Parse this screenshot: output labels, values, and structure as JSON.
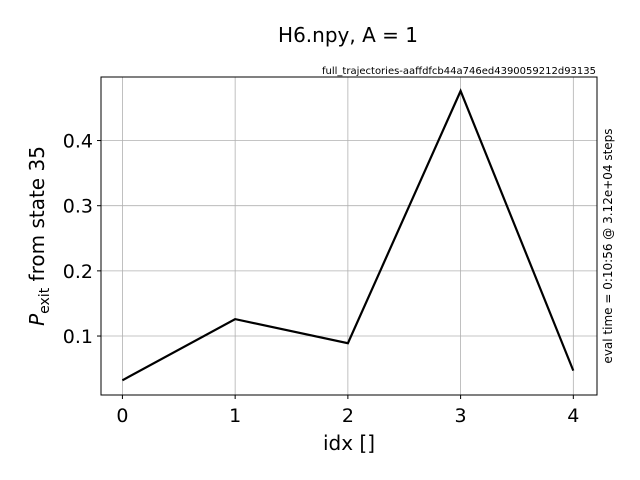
{
  "chart_data": {
    "type": "line",
    "title": "H6.npy, A = 1",
    "subtitle": "full_trajectories-aaffdfcb44a746ed4390059212d93135",
    "xlabel": "idx []",
    "ylabel_main": "P",
    "ylabel_sub": "exit",
    "ylabel_rest": " from state 35",
    "side_note": "eval time = 0:10:56 @ 3.12e+04 steps",
    "x": [
      0,
      1,
      2,
      3,
      4
    ],
    "series": [
      {
        "values": [
          0.032,
          0.126,
          0.089,
          0.476,
          0.047
        ],
        "color": "#000000"
      }
    ],
    "xticks": [
      "0",
      "1",
      "2",
      "3",
      "4"
    ],
    "yticks": [
      "0.1",
      "0.2",
      "0.3",
      "0.4"
    ],
    "ytick_values": [
      0.1,
      0.2,
      0.3,
      0.4
    ],
    "xlim": [
      -0.19,
      4.21
    ],
    "ylim": [
      0.0095,
      0.4975
    ],
    "grid": true
  }
}
